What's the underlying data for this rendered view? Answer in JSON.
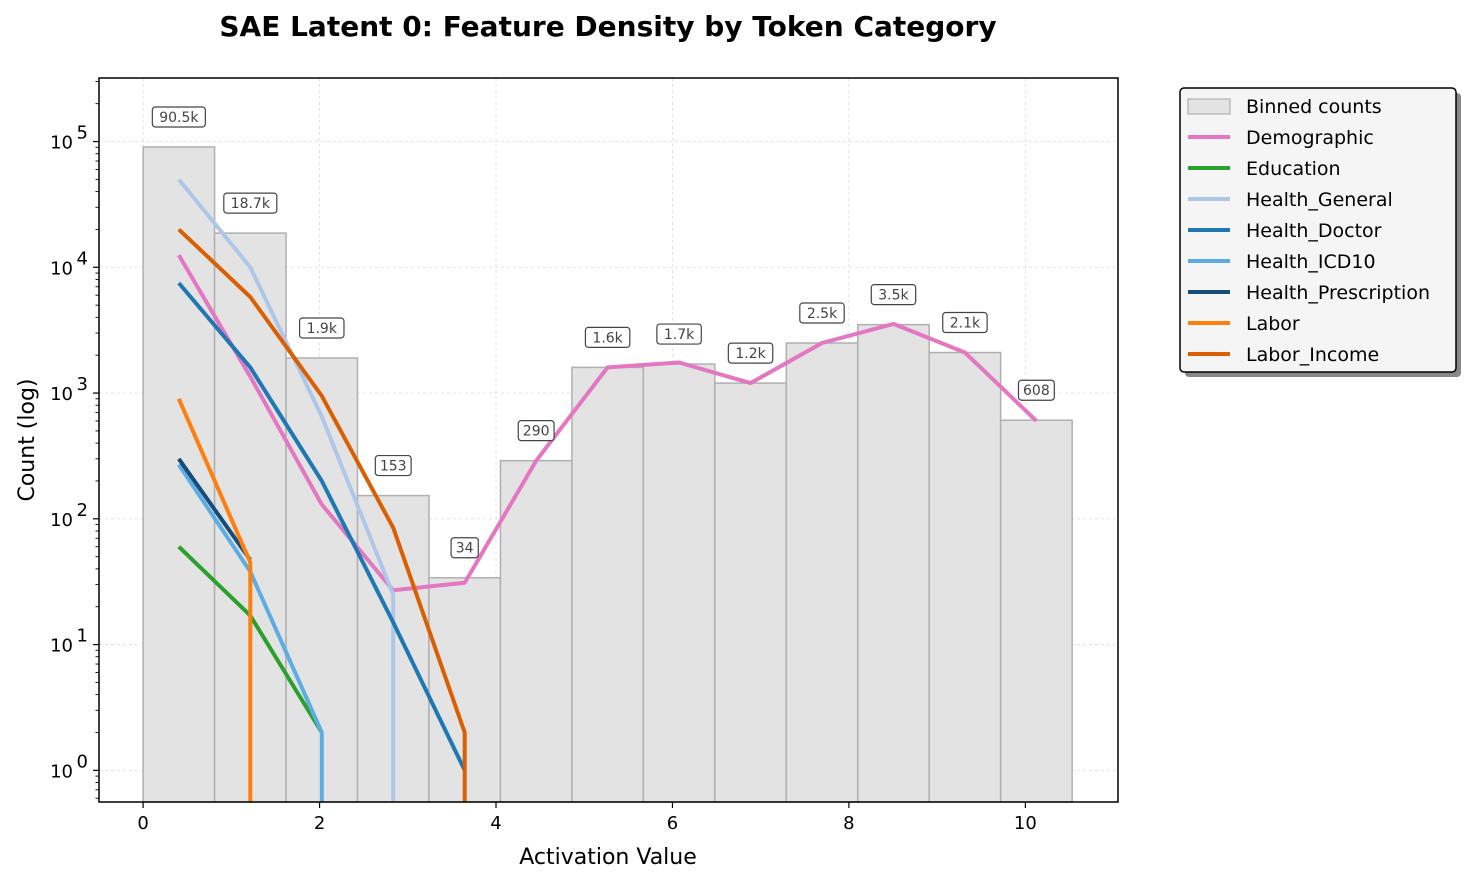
{
  "chart_data": {
    "type": "bar",
    "title": "SAE Latent 0: Feature Density by Token Category",
    "xlabel": "Activation Value",
    "ylabel": "Count (log)",
    "yscale": "log",
    "xlim": [
      -0.5,
      11.05
    ],
    "ylim": [
      0.56,
      320000
    ],
    "x_ticks": [
      0,
      2,
      4,
      6,
      8,
      10
    ],
    "x_tick_labels": [
      "0",
      "2",
      "4",
      "6",
      "8",
      "10"
    ],
    "y_ticks": [
      1,
      10,
      100,
      1000,
      10000,
      100000
    ],
    "y_tick_labels": [
      {
        "base": "10",
        "exp": "0"
      },
      {
        "base": "10",
        "exp": "1"
      },
      {
        "base": "10",
        "exp": "2"
      },
      {
        "base": "10",
        "exp": "3"
      },
      {
        "base": "10",
        "exp": "4"
      },
      {
        "base": "10",
        "exp": "5"
      }
    ],
    "grid": true,
    "legend_position": "outside-right",
    "histogram": {
      "name": "Binned counts",
      "color": "#e3e3e3",
      "edge_color": "#b0b0b0",
      "bin_edges": [
        0,
        0.81,
        1.62,
        2.43,
        3.24,
        4.05,
        4.86,
        5.67,
        6.48,
        7.29,
        8.1,
        8.91,
        9.72,
        10.53
      ],
      "counts": [
        90500,
        18700,
        1900,
        153,
        34,
        290,
        1600,
        1700,
        1200,
        2500,
        3500,
        2100,
        608
      ],
      "labels": [
        "90.5k",
        "18.7k",
        "1.9k",
        "153",
        "34",
        "290",
        "1.6k",
        "1.7k",
        "1.2k",
        "2.5k",
        "3.5k",
        "2.1k",
        "608"
      ]
    },
    "series": [
      {
        "name": "Demographic",
        "color": "#e377c2",
        "x": [
          0.405,
          1.215,
          2.025,
          2.835,
          3.645,
          4.455,
          5.265,
          6.075,
          6.885,
          7.695,
          8.505,
          9.315,
          10.125
        ],
        "y": [
          12500,
          1350,
          130,
          27,
          31,
          290,
          1600,
          1750,
          1200,
          2500,
          3550,
          2100,
          600
        ]
      },
      {
        "name": "Education",
        "color": "#2ca02c",
        "x": [
          0.405,
          1.215,
          2.025
        ],
        "y": [
          60,
          17,
          2
        ]
      },
      {
        "name": "Health_General",
        "color": "#aec7e8",
        "x": [
          0.405,
          1.215,
          2.025,
          2.835,
          2.835
        ],
        "y": [
          50000,
          10000,
          650,
          25,
          0.56
        ]
      },
      {
        "name": "Health_Doctor",
        "color": "#1f77b4",
        "x": [
          0.405,
          1.215,
          2.025,
          2.835,
          3.645
        ],
        "y": [
          7500,
          1600,
          200,
          15,
          1
        ]
      },
      {
        "name": "Health_ICD10",
        "color": "#5dade2",
        "x": [
          0.405,
          1.215,
          2.025,
          2.025
        ],
        "y": [
          270,
          38,
          2,
          0.56
        ]
      },
      {
        "name": "Health_Prescription",
        "color": "#154c79",
        "x": [
          0.405,
          1.215
        ],
        "y": [
          300,
          47
        ]
      },
      {
        "name": "Labor",
        "color": "#ff7f0e",
        "x": [
          0.405,
          1.215,
          1.215
        ],
        "y": [
          900,
          45,
          0.56
        ]
      },
      {
        "name": "Labor_Income",
        "color": "#d95f02",
        "x": [
          0.405,
          1.215,
          2.025,
          2.835,
          3.645,
          3.645
        ],
        "y": [
          20000,
          5800,
          950,
          85,
          2,
          0.56
        ]
      }
    ]
  }
}
